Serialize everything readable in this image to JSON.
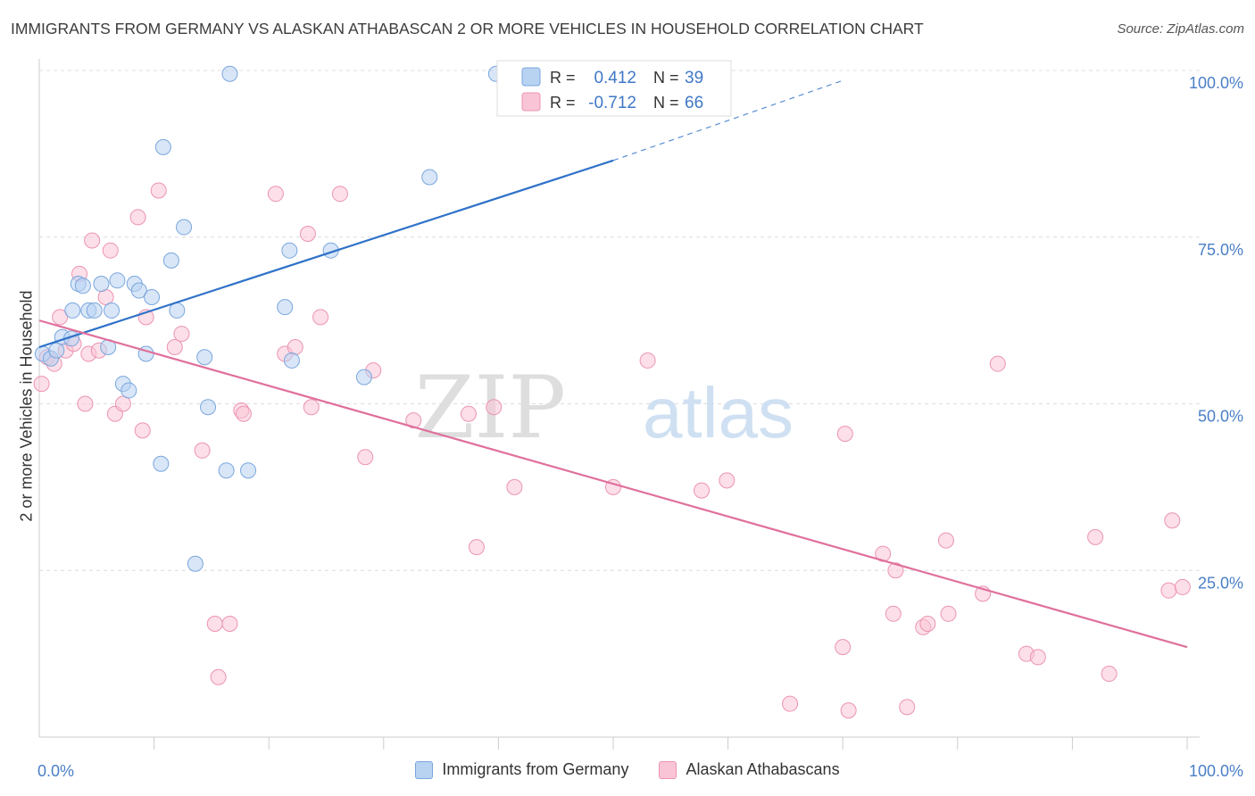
{
  "header": {
    "title": "IMMIGRANTS FROM GERMANY VS ALASKAN ATHABASCAN 2 OR MORE VEHICLES IN HOUSEHOLD CORRELATION CHART",
    "source": "Source: ZipAtlas.com"
  },
  "watermark": {
    "zip": "ZIP",
    "atlas": "atlas"
  },
  "stats_box": {
    "rows": [
      {
        "r_label": "R =",
        "r_value": "0.412",
        "n_label": "N =",
        "n_value": "39"
      },
      {
        "r_label": "R =",
        "r_value": "-0.712",
        "n_label": "N =",
        "n_value": "66"
      }
    ]
  },
  "colors": {
    "blue_fill": "#b8d2f2",
    "blue_stroke": "#7aa6dc",
    "blue_line": "#2f72c8",
    "pink_fill": "#f9c5d6",
    "pink_stroke": "#ec94b1",
    "pink_line": "#e0709c",
    "axis_text": "#4a7fc7",
    "grid": "#dcdcdc"
  },
  "chart_data": {
    "type": "scatter",
    "xlabel": "",
    "ylabel": "2 or more Vehicles in Household",
    "xlim": [
      0,
      100
    ],
    "ylim": [
      0,
      100
    ],
    "x_tick_labels": [
      "0.0%",
      "100.0%"
    ],
    "y_tick_labels": [
      "25.0%",
      "50.0%",
      "75.0%",
      "100.0%"
    ],
    "y_ticks": [
      25,
      50,
      75,
      100
    ],
    "grid": true,
    "legend_position": "bottom",
    "series": [
      {
        "name": "Immigrants from Germany",
        "color": "blue",
        "r": 0.412,
        "n": 39,
        "trend": {
          "x0": 0,
          "y0": 58.5,
          "x1": 50,
          "y1": 86.5,
          "dashed_to_x": 70,
          "dashed_to_y": 98.5
        },
        "points": [
          [
            0.3,
            57.5
          ],
          [
            1.0,
            56.8
          ],
          [
            1.5,
            58.0
          ],
          [
            2.0,
            60.0
          ],
          [
            2.8,
            59.8
          ],
          [
            2.9,
            64.0
          ],
          [
            3.4,
            68.0
          ],
          [
            3.8,
            67.7
          ],
          [
            4.3,
            64.0
          ],
          [
            4.8,
            64.0
          ],
          [
            5.4,
            68.0
          ],
          [
            6.0,
            58.5
          ],
          [
            6.3,
            64.0
          ],
          [
            6.8,
            68.5
          ],
          [
            7.3,
            53.0
          ],
          [
            7.8,
            52.0
          ],
          [
            8.3,
            68.0
          ],
          [
            8.7,
            67.0
          ],
          [
            9.3,
            57.5
          ],
          [
            9.8,
            66.0
          ],
          [
            10.6,
            41.0
          ],
          [
            10.8,
            88.5
          ],
          [
            11.5,
            71.5
          ],
          [
            12.0,
            64.0
          ],
          [
            12.6,
            76.5
          ],
          [
            13.6,
            26.0
          ],
          [
            14.4,
            57.0
          ],
          [
            14.7,
            49.5
          ],
          [
            16.3,
            40.0
          ],
          [
            16.6,
            99.5
          ],
          [
            18.2,
            40.0
          ],
          [
            21.4,
            64.5
          ],
          [
            21.8,
            73.0
          ],
          [
            22.0,
            56.5
          ],
          [
            25.4,
            73.0
          ],
          [
            28.3,
            54.0
          ],
          [
            34.0,
            84.0
          ],
          [
            39.8,
            99.5
          ],
          [
            47.8,
            99.5
          ]
        ]
      },
      {
        "name": "Alaskan Athabascans",
        "color": "pink",
        "r": -0.712,
        "n": 66,
        "trend": {
          "x0": 0,
          "y0": 62.5,
          "x1": 100,
          "y1": 13.5
        },
        "points": [
          [
            0.2,
            53.0
          ],
          [
            0.7,
            57.0
          ],
          [
            1.3,
            56.0
          ],
          [
            1.8,
            63.0
          ],
          [
            2.3,
            58.0
          ],
          [
            3.0,
            59.0
          ],
          [
            3.5,
            69.5
          ],
          [
            4.0,
            50.0
          ],
          [
            4.3,
            57.5
          ],
          [
            4.6,
            74.5
          ],
          [
            5.2,
            58.0
          ],
          [
            5.8,
            66.0
          ],
          [
            6.2,
            73.0
          ],
          [
            6.6,
            48.5
          ],
          [
            7.3,
            50.0
          ],
          [
            8.6,
            78.0
          ],
          [
            9.0,
            46.0
          ],
          [
            9.3,
            63.0
          ],
          [
            10.4,
            82.0
          ],
          [
            11.8,
            58.5
          ],
          [
            12.4,
            60.5
          ],
          [
            14.2,
            43.0
          ],
          [
            15.3,
            17.0
          ],
          [
            15.6,
            9.0
          ],
          [
            16.6,
            17.0
          ],
          [
            17.6,
            49.0
          ],
          [
            17.8,
            48.5
          ],
          [
            20.6,
            81.5
          ],
          [
            21.4,
            57.5
          ],
          [
            22.3,
            58.5
          ],
          [
            23.4,
            75.5
          ],
          [
            23.7,
            49.5
          ],
          [
            24.5,
            63.0
          ],
          [
            26.2,
            81.5
          ],
          [
            28.4,
            42.0
          ],
          [
            29.1,
            55.0
          ],
          [
            32.6,
            47.5
          ],
          [
            37.4,
            48.5
          ],
          [
            38.1,
            28.5
          ],
          [
            39.6,
            49.5
          ],
          [
            41.4,
            37.5
          ],
          [
            50.0,
            37.5
          ],
          [
            53.0,
            56.5
          ],
          [
            57.7,
            37.0
          ],
          [
            59.9,
            38.5
          ],
          [
            65.4,
            5.0
          ],
          [
            70.0,
            13.5
          ],
          [
            70.2,
            45.5
          ],
          [
            70.5,
            4.0
          ],
          [
            73.5,
            27.5
          ],
          [
            74.4,
            18.5
          ],
          [
            74.6,
            25.0
          ],
          [
            75.6,
            4.5
          ],
          [
            77.0,
            16.5
          ],
          [
            77.4,
            17.0
          ],
          [
            79.0,
            29.5
          ],
          [
            79.2,
            18.5
          ],
          [
            82.2,
            21.5
          ],
          [
            83.5,
            56.0
          ],
          [
            86.0,
            12.5
          ],
          [
            87.0,
            12.0
          ],
          [
            92.0,
            30.0
          ],
          [
            93.2,
            9.5
          ],
          [
            98.4,
            22.0
          ],
          [
            98.7,
            32.5
          ],
          [
            99.6,
            22.5
          ]
        ]
      }
    ]
  },
  "legend": {
    "items": [
      {
        "label": "Immigrants from Germany"
      },
      {
        "label": "Alaskan Athabascans"
      }
    ]
  }
}
